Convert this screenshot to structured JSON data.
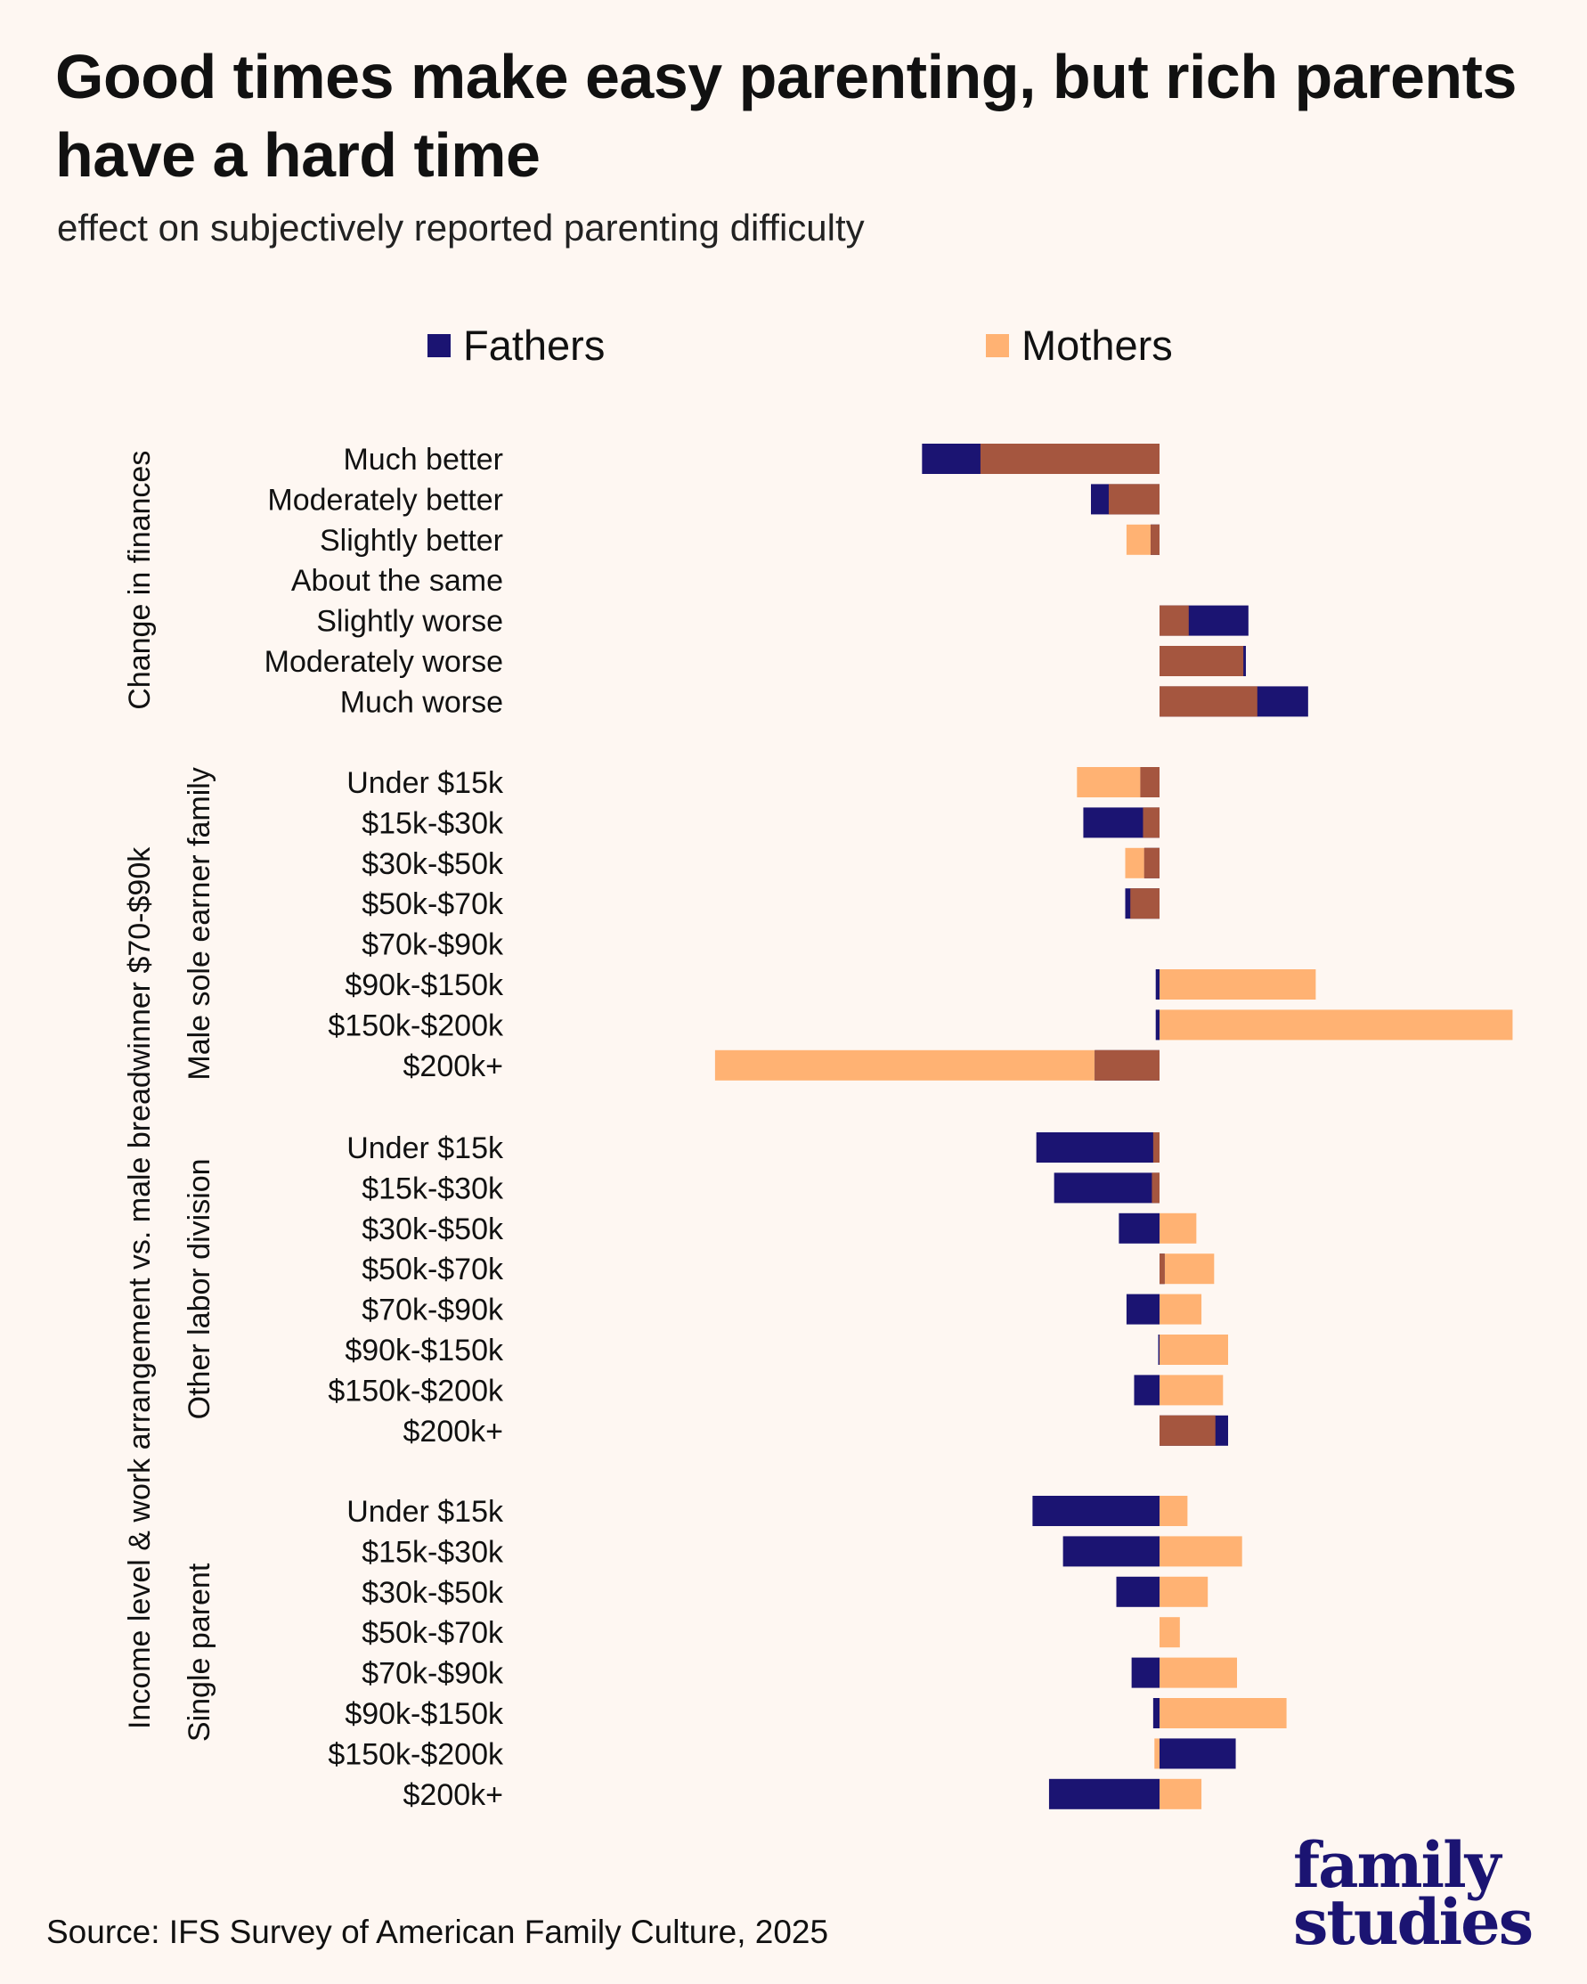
{
  "title": "Good times make easy parenting, but rich parents have a hard time",
  "subtitle": "effect on subjectively reported parenting difficulty",
  "source": "Source: IFS Survey of American Family Culture, 2025",
  "logo": {
    "line1": "family",
    "line2": "studies"
  },
  "colors": {
    "fathers": "#1b1472",
    "mothers": "#ffb273",
    "overlap": "#a5563f"
  },
  "chart_data": {
    "type": "bar",
    "orientation": "horizontal",
    "title": "Good times make easy parenting, but rich parents have a hard time",
    "subtitle": "effect on subjectively reported parenting difficulty",
    "legend": {
      "placement": "top",
      "entries": [
        "Fathers",
        "Mothers"
      ]
    },
    "grid": false,
    "xlim": [
      -3.6,
      2.9
    ],
    "outer_groups": [
      {
        "label": "Change in finances",
        "subgroups": [
          0
        ]
      },
      {
        "label": "Income level & work arrangement vs. male breadwinner $70-$90k",
        "subgroups": [
          1,
          2,
          3
        ]
      }
    ],
    "groups": [
      {
        "label": "",
        "categories": [
          "Much better",
          "Moderately better",
          "Slightly better",
          "About the same",
          "Slightly worse",
          "Moderately worse",
          "Much worse"
        ],
        "series": [
          {
            "name": "Fathers",
            "values": [
              -1.87,
              -0.54,
              -0.07,
              0,
              0.7,
              0.68,
              1.17
            ]
          },
          {
            "name": "Mothers",
            "values": [
              -1.41,
              -0.4,
              -0.26,
              0,
              0.23,
              0.66,
              0.77
            ]
          }
        ]
      },
      {
        "label": "Male sole earner family",
        "categories": [
          "Under $15k",
          "$15k-$30k",
          "$30k-$50k",
          "$50k-$70k",
          "$70k-$90k",
          "$90k-$150k",
          "$150k-$200k",
          "$200k+"
        ],
        "series": [
          {
            "name": "Fathers",
            "values": [
              -0.15,
              -0.6,
              -0.12,
              -0.27,
              0,
              -0.03,
              -0.03,
              -0.51
            ]
          },
          {
            "name": "Mothers",
            "values": [
              -0.65,
              -0.13,
              -0.27,
              -0.23,
              0,
              1.23,
              2.78,
              -3.5
            ]
          }
        ]
      },
      {
        "label": "Other labor division",
        "categories": [
          "Under $15k",
          "$15k-$30k",
          "$30k-$50k",
          "$50k-$70k",
          "$70k-$90k",
          "$90k-$150k",
          "$150k-$200k",
          "$200k+"
        ],
        "series": [
          {
            "name": "Fathers",
            "values": [
              -0.97,
              -0.83,
              -0.32,
              0.04,
              -0.26,
              -0.01,
              -0.2,
              0.54
            ]
          },
          {
            "name": "Mothers",
            "values": [
              -0.05,
              -0.06,
              0.29,
              0.43,
              0.33,
              0.54,
              0.5,
              0.44
            ]
          }
        ]
      },
      {
        "label": "Single parent",
        "categories": [
          "Under $15k",
          "$15k-$30k",
          "$30k-$50k",
          "$50k-$70k",
          "$70k-$90k",
          "$90k-$150k",
          "$150k-$200k",
          "$200k+"
        ],
        "series": [
          {
            "name": "Fathers",
            "values": [
              -1.0,
              -0.76,
              -0.34,
              0,
              -0.22,
              -0.05,
              0.6,
              -0.87
            ]
          },
          {
            "name": "Mothers",
            "values": [
              0.22,
              0.65,
              0.38,
              0.16,
              0.61,
              1.0,
              -0.04,
              0.33
            ]
          }
        ]
      }
    ]
  }
}
